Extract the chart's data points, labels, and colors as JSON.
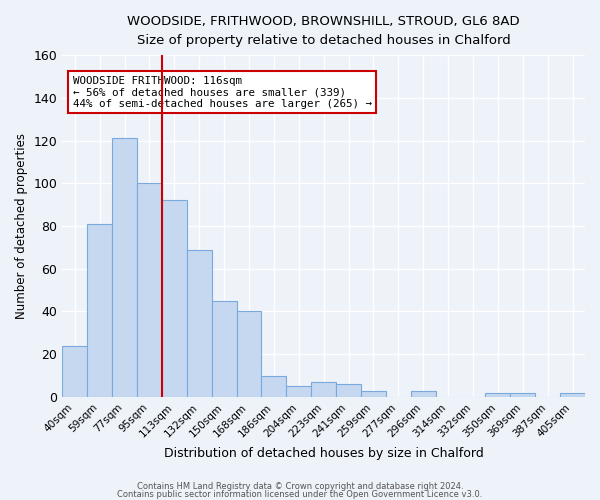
{
  "title": "WOODSIDE, FRITHWOOD, BROWNSHILL, STROUD, GL6 8AD",
  "subtitle": "Size of property relative to detached houses in Chalford",
  "xlabel": "Distribution of detached houses by size in Chalford",
  "ylabel": "Number of detached properties",
  "bar_color": "#c5d8f0",
  "bar_edgecolor": "#7aaadd",
  "background_color": "#eef2f9",
  "grid_color": "#ffffff",
  "categories": [
    "40sqm",
    "59sqm",
    "77sqm",
    "95sqm",
    "113sqm",
    "132sqm",
    "150sqm",
    "168sqm",
    "186sqm",
    "204sqm",
    "223sqm",
    "241sqm",
    "259sqm",
    "277sqm",
    "296sqm",
    "314sqm",
    "332sqm",
    "350sqm",
    "369sqm",
    "387sqm",
    "405sqm"
  ],
  "values": [
    24,
    81,
    121,
    100,
    92,
    69,
    45,
    40,
    10,
    5,
    7,
    6,
    3,
    0,
    3,
    0,
    0,
    2,
    2,
    0,
    2
  ],
  "marker_color": "#cc0000",
  "annotation_title": "WOODSIDE FRITHWOOD: 116sqm",
  "annotation_line1": "← 56% of detached houses are smaller (339)",
  "annotation_line2": "44% of semi-detached houses are larger (265) →",
  "ylim": [
    0,
    160
  ],
  "yticks": [
    0,
    20,
    40,
    60,
    80,
    100,
    120,
    140,
    160
  ],
  "footer1": "Contains HM Land Registry data © Crown copyright and database right 2024.",
  "footer2": "Contains public sector information licensed under the Open Government Licence v3.0."
}
